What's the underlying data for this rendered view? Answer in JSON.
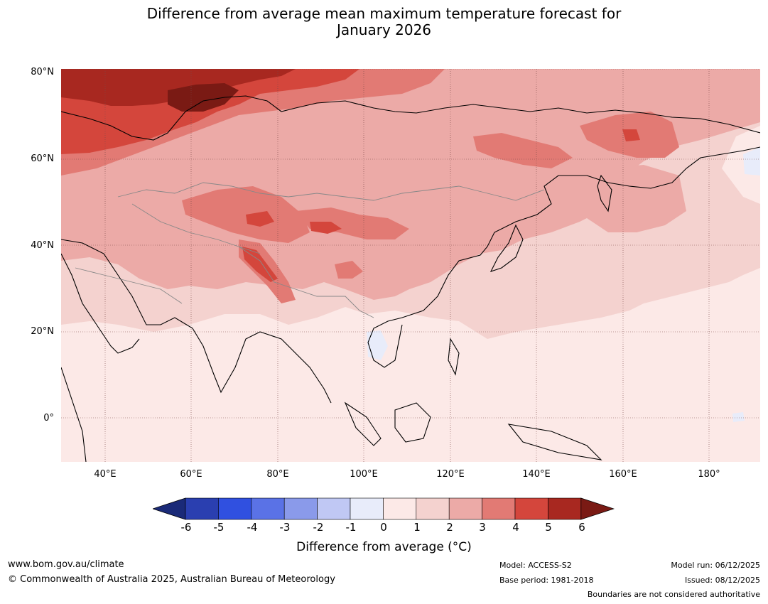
{
  "title_line1": "Difference from average mean maximum temperature forecast for",
  "title_line2": "January 2026",
  "lat_labels": [
    "80°N",
    "60°N",
    "40°N",
    "20°N",
    "0°"
  ],
  "lon_labels": [
    "40°E",
    "60°E",
    "80°E",
    "100°E",
    "120°E",
    "140°E",
    "160°E",
    "180°"
  ],
  "colorbar": {
    "ticks": [
      "-6",
      "-5",
      "-4",
      "-3",
      "-2",
      "-1",
      "0",
      "1",
      "2",
      "3",
      "4",
      "5",
      "6"
    ],
    "colors": [
      "#1a2a78",
      "#2a3fb0",
      "#3050e0",
      "#5a72e6",
      "#8a9aea",
      "#c0c8f4",
      "#e8ecfa",
      "#fce9e7",
      "#f4d2cf",
      "#ecaaa7",
      "#e27a74",
      "#d4463c",
      "#a82820",
      "#7a1a14"
    ],
    "label": "Difference from average (°C)"
  },
  "footer": {
    "url": "www.bom.gov.au/climate",
    "copyright": "© Commonwealth of Australia 2025, Australian Bureau of Meteorology",
    "model": "Model: ACCESS-S2",
    "base_period": "Base period: 1981-2018",
    "model_run": "Model run: 06/12/2025",
    "issued": "Issued: 08/12/2025",
    "disclaimer": "Boundaries are not considered authoritative"
  }
}
